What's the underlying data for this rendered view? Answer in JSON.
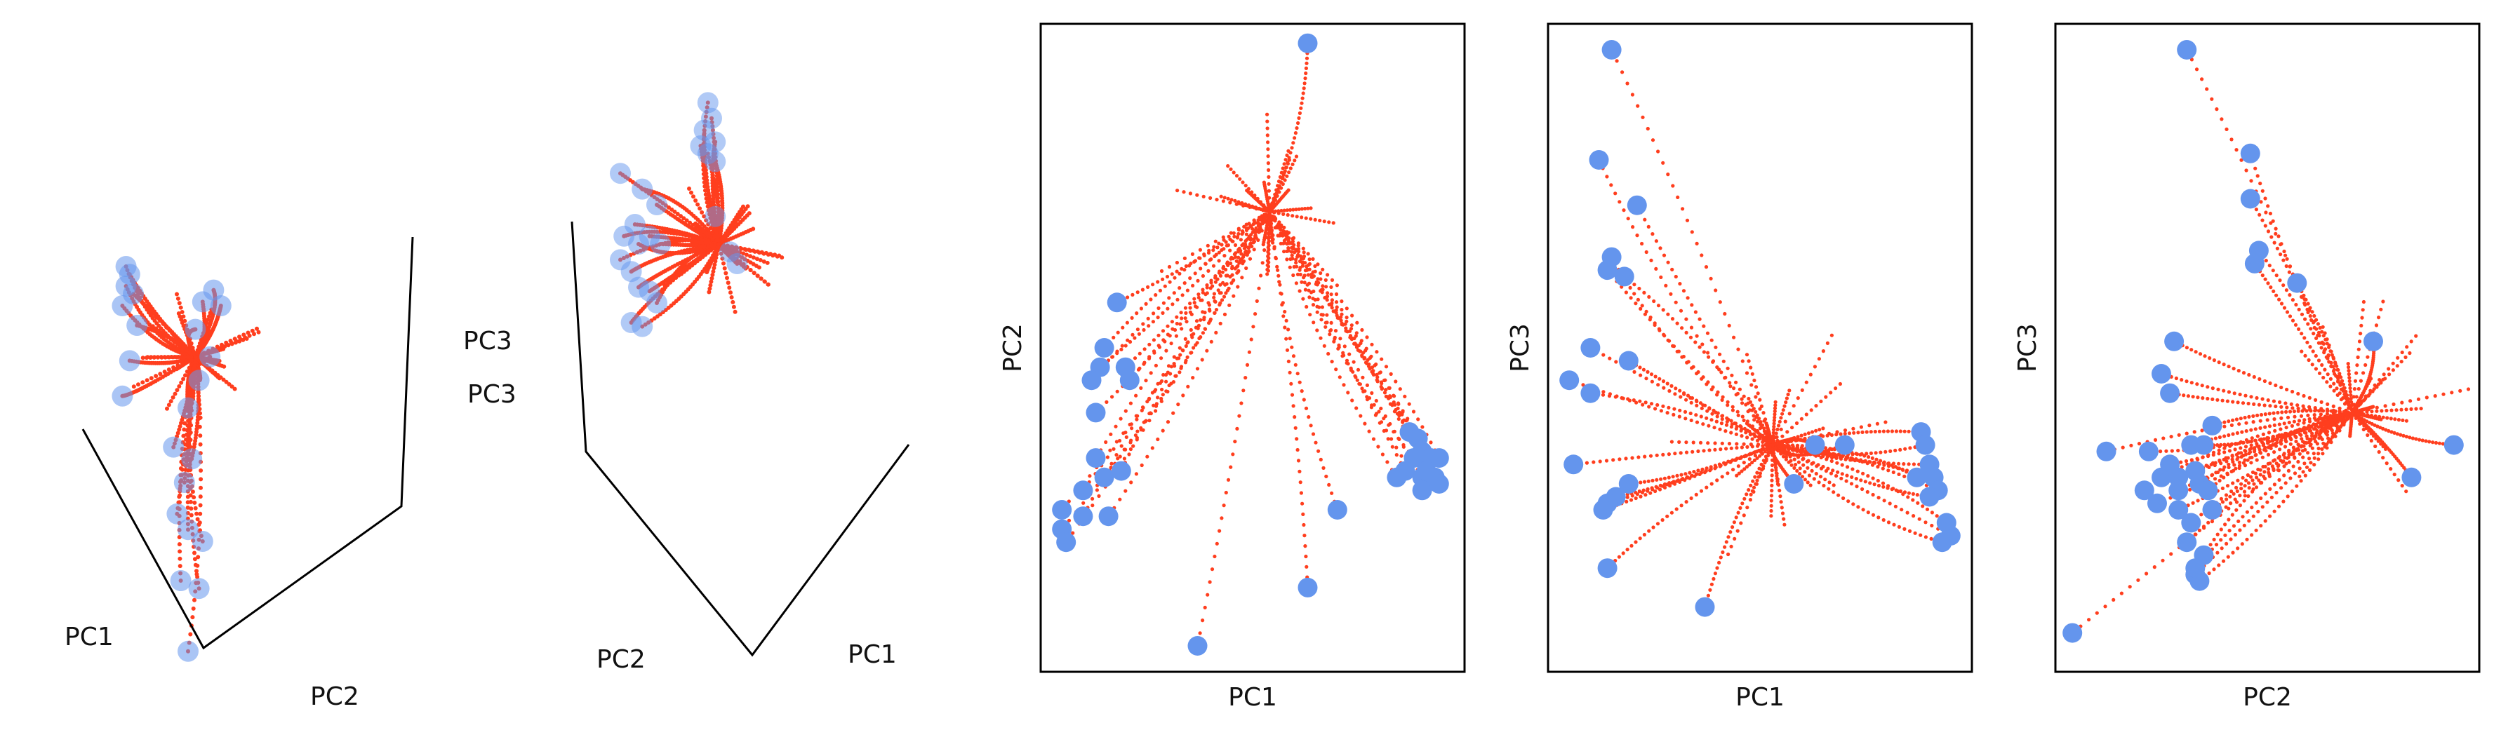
{
  "colors": {
    "trajectory": "#FF3E1E",
    "point": "#6495ED",
    "axis": "#000000"
  },
  "chart_data": [
    {
      "id": "view3d-a",
      "type": "scatter",
      "projection": "3d",
      "axis_labels": {
        "a": "PC1",
        "b": "PC2",
        "c": "PC3"
      },
      "points": [
        [
          2.3,
          7.5
        ],
        [
          2.4,
          7.3
        ],
        [
          2.3,
          7.0
        ],
        [
          2.5,
          6.8
        ],
        [
          2.2,
          6.5
        ],
        [
          2.6,
          6.0
        ],
        [
          2.4,
          5.1
        ],
        [
          2.2,
          4.2
        ],
        [
          4.4,
          6.6
        ],
        [
          4.2,
          5.9
        ],
        [
          4.6,
          5.2
        ],
        [
          4.3,
          4.6
        ],
        [
          4.0,
          3.9
        ],
        [
          3.6,
          2.9
        ],
        [
          4.1,
          2.6
        ],
        [
          3.9,
          2.0
        ],
        [
          3.7,
          1.2
        ],
        [
          4.0,
          0.8
        ],
        [
          4.4,
          0.5
        ],
        [
          4.3,
          -0.7
        ],
        [
          4.0,
          -2.3
        ],
        [
          3.8,
          -0.5
        ],
        [
          4.7,
          6.9
        ],
        [
          4.9,
          6.5
        ]
      ],
      "hub": [
        4.2,
        5.2
      ]
    },
    {
      "id": "view3d-b",
      "type": "scatter",
      "projection": "3d",
      "axis_labels": {
        "a": "PC2",
        "b": "PC1",
        "c": "PC3"
      },
      "points": [
        [
          4.4,
          10.6
        ],
        [
          4.5,
          10.2
        ],
        [
          4.3,
          9.9
        ],
        [
          4.6,
          9.6
        ],
        [
          4.2,
          9.5
        ],
        [
          4.4,
          9.3
        ],
        [
          4.6,
          9.1
        ],
        [
          2.0,
          8.8
        ],
        [
          2.6,
          8.4
        ],
        [
          3.0,
          8.0
        ],
        [
          2.4,
          7.5
        ],
        [
          2.1,
          7.2
        ],
        [
          2.8,
          7.2
        ],
        [
          2.5,
          7.0
        ],
        [
          3.1,
          7.0
        ],
        [
          2.0,
          6.6
        ],
        [
          2.3,
          6.3
        ],
        [
          2.5,
          5.9
        ],
        [
          2.8,
          5.8
        ],
        [
          3.0,
          5.5
        ],
        [
          2.3,
          5.0
        ],
        [
          2.6,
          4.9
        ],
        [
          5.0,
          6.8
        ],
        [
          5.2,
          6.5
        ],
        [
          4.6,
          7.7
        ]
      ],
      "hub": [
        4.7,
        7.0
      ]
    },
    {
      "id": "pc1-pc2",
      "type": "scatter",
      "xlabel": "PC1",
      "ylabel": "PC2",
      "xlim": [
        0,
        10
      ],
      "ylim": [
        0,
        10
      ],
      "points": [
        [
          6.3,
          9.7
        ],
        [
          1.8,
          5.7
        ],
        [
          1.5,
          5.0
        ],
        [
          1.4,
          4.7
        ],
        [
          1.2,
          4.5
        ],
        [
          2.0,
          4.7
        ],
        [
          2.1,
          4.5
        ],
        [
          1.3,
          4.0
        ],
        [
          1.3,
          3.3
        ],
        [
          1.9,
          3.1
        ],
        [
          1.5,
          3.0
        ],
        [
          1.0,
          2.8
        ],
        [
          0.5,
          2.5
        ],
        [
          0.5,
          2.2
        ],
        [
          1.0,
          2.4
        ],
        [
          1.6,
          2.4
        ],
        [
          0.6,
          2.0
        ],
        [
          8.7,
          3.7
        ],
        [
          8.9,
          3.6
        ],
        [
          9.0,
          3.4
        ],
        [
          8.8,
          3.3
        ],
        [
          9.2,
          3.3
        ],
        [
          8.6,
          3.1
        ],
        [
          9.0,
          3.0
        ],
        [
          9.4,
          3.3
        ],
        [
          9.1,
          3.1
        ],
        [
          8.4,
          3.0
        ],
        [
          9.3,
          3.0
        ],
        [
          9.0,
          2.8
        ],
        [
          9.4,
          2.9
        ],
        [
          7.0,
          2.5
        ],
        [
          6.3,
          1.3
        ],
        [
          3.7,
          0.4
        ]
      ],
      "hub": [
        5.4,
        7.1
      ]
    },
    {
      "id": "pc1-pc3",
      "type": "scatter",
      "xlabel": "PC1",
      "ylabel": "PC3",
      "xlim": [
        0,
        10
      ],
      "ylim": [
        0,
        10
      ],
      "points": [
        [
          1.5,
          9.6
        ],
        [
          1.2,
          7.9
        ],
        [
          2.1,
          7.2
        ],
        [
          1.5,
          6.4
        ],
        [
          1.4,
          6.2
        ],
        [
          1.8,
          6.1
        ],
        [
          1.0,
          5.0
        ],
        [
          1.0,
          4.3
        ],
        [
          1.9,
          4.8
        ],
        [
          0.5,
          4.5
        ],
        [
          0.6,
          3.2
        ],
        [
          1.9,
          2.9
        ],
        [
          1.6,
          2.7
        ],
        [
          1.4,
          2.6
        ],
        [
          1.3,
          2.5
        ],
        [
          1.4,
          1.6
        ],
        [
          3.7,
          1.0
        ],
        [
          6.3,
          3.5
        ],
        [
          7.0,
          3.5
        ],
        [
          8.8,
          3.7
        ],
        [
          8.9,
          3.5
        ],
        [
          9.0,
          3.2
        ],
        [
          9.1,
          3.0
        ],
        [
          8.7,
          3.0
        ],
        [
          9.2,
          2.8
        ],
        [
          9.0,
          2.7
        ],
        [
          9.4,
          2.3
        ],
        [
          9.5,
          2.1
        ],
        [
          9.3,
          2.0
        ],
        [
          5.8,
          2.9
        ]
      ],
      "hub": [
        5.3,
        3.5
      ]
    },
    {
      "id": "pc2-pc3",
      "type": "scatter",
      "xlabel": "PC2",
      "ylabel": "PC3",
      "xlim": [
        0,
        10
      ],
      "ylim": [
        0,
        10
      ],
      "points": [
        [
          3.1,
          9.6
        ],
        [
          4.6,
          8.0
        ],
        [
          4.6,
          7.3
        ],
        [
          4.8,
          6.5
        ],
        [
          4.7,
          6.3
        ],
        [
          5.7,
          6.0
        ],
        [
          2.8,
          5.1
        ],
        [
          2.5,
          4.6
        ],
        [
          2.7,
          4.3
        ],
        [
          3.7,
          3.8
        ],
        [
          3.5,
          3.5
        ],
        [
          1.2,
          3.4
        ],
        [
          2.2,
          3.4
        ],
        [
          3.2,
          3.5
        ],
        [
          2.7,
          3.2
        ],
        [
          2.5,
          3.0
        ],
        [
          2.9,
          3.0
        ],
        [
          3.3,
          3.1
        ],
        [
          3.4,
          2.9
        ],
        [
          2.9,
          2.8
        ],
        [
          3.6,
          2.8
        ],
        [
          2.1,
          2.8
        ],
        [
          2.4,
          2.6
        ],
        [
          3.7,
          2.5
        ],
        [
          2.9,
          2.5
        ],
        [
          3.2,
          2.3
        ],
        [
          3.1,
          2.0
        ],
        [
          3.5,
          1.8
        ],
        [
          3.3,
          1.5
        ],
        [
          3.4,
          1.4
        ],
        [
          3.3,
          1.6
        ],
        [
          0.4,
          0.6
        ],
        [
          7.5,
          5.1
        ],
        [
          8.4,
          3.0
        ],
        [
          9.4,
          3.5
        ]
      ],
      "hub": [
        7.0,
        4.0
      ]
    }
  ]
}
